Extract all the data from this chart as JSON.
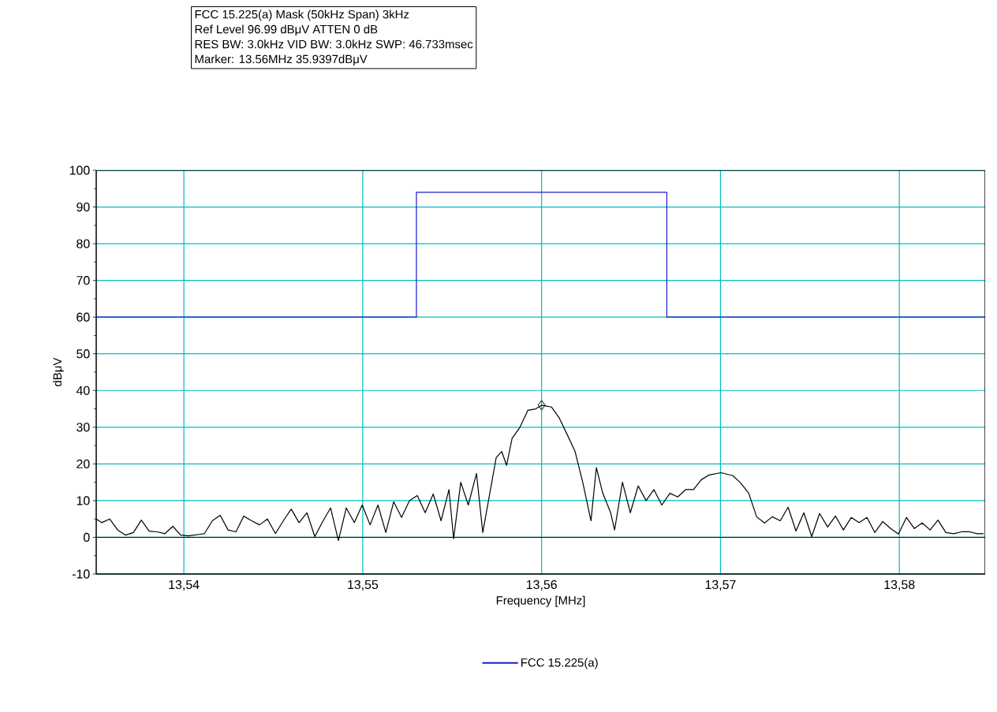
{
  "chart_data": {
    "type": "line",
    "title": "FCC 15.225(a) Mask (50kHz Span) 3kHz",
    "annotations": [
      "Ref Level 96.99 dBμV    ATTEN 0 dB",
      "RES BW: 3.0kHz  VID BW: 3.0kHz  SWP: 46.733msec",
      "Marker: 13.56MHz  35.9397dBμV"
    ],
    "xlabel": "Frequency [MHz]",
    "ylabel": "dBμV",
    "xlim": [
      13.5351,
      13.5848
    ],
    "ylim": [
      -10,
      100
    ],
    "xticks": [
      {
        "value": 13.54,
        "label": "13,54"
      },
      {
        "value": 13.55,
        "label": "13,55"
      },
      {
        "value": 13.56,
        "label": "13,56"
      },
      {
        "value": 13.57,
        "label": "13,57"
      },
      {
        "value": 13.58,
        "label": "13,58"
      }
    ],
    "yticks": [
      -10,
      0,
      10,
      20,
      30,
      40,
      50,
      60,
      70,
      80,
      90,
      100
    ],
    "grid": true,
    "legend": "bottom",
    "ref_lines": [
      {
        "axis": "y",
        "value": 0,
        "color": "#000000"
      }
    ],
    "series": [
      {
        "name": "FCC 15.225(a)",
        "color": "#1a1ad0",
        "x": [
          13.5351,
          13.553,
          13.553,
          13.567,
          13.567,
          13.5848
        ],
        "values": [
          60,
          60,
          94,
          94,
          60,
          60
        ]
      },
      {
        "color": "#000000",
        "x": [
          13.5351,
          13.53541,
          13.53585,
          13.5363,
          13.53674,
          13.53718,
          13.53762,
          13.53806,
          13.5385,
          13.53894,
          13.53938,
          13.53982,
          13.54026,
          13.54115,
          13.54159,
          13.54203,
          13.54247,
          13.54291,
          13.54335,
          13.54379,
          13.54423,
          13.54467,
          13.54512,
          13.54556,
          13.546,
          13.54644,
          13.54688,
          13.54732,
          13.54776,
          13.5482,
          13.54864,
          13.54908,
          13.54953,
          13.54997,
          13.55041,
          13.55085,
          13.55129,
          13.55173,
          13.55217,
          13.55261,
          13.55305,
          13.55349,
          13.55394,
          13.55438,
          13.55482,
          13.55508,
          13.55548,
          13.5559,
          13.55636,
          13.55671,
          13.55746,
          13.55777,
          13.55804,
          13.55835,
          13.55879,
          13.55923,
          13.55967,
          13.56,
          13.56055,
          13.56099,
          13.56143,
          13.56187,
          13.56231,
          13.56276,
          13.56306,
          13.56342,
          13.56386,
          13.56408,
          13.56452,
          13.56496,
          13.5654,
          13.56584,
          13.56628,
          13.56672,
          13.56717,
          13.56761,
          13.56805,
          13.56849,
          13.56893,
          13.56937,
          13.57003,
          13.57069,
          13.57113,
          13.57158,
          13.57202,
          13.57246,
          13.5729,
          13.57334,
          13.57378,
          13.57422,
          13.57466,
          13.5751,
          13.57554,
          13.57599,
          13.57643,
          13.57687,
          13.57731,
          13.57775,
          13.57819,
          13.57863,
          13.57907,
          13.57951,
          13.57995,
          13.5804,
          13.58084,
          13.58128,
          13.58172,
          13.58216,
          13.5826,
          13.58304,
          13.58348,
          13.58392,
          13.58436,
          13.58471
        ],
        "values": [
          5,
          4,
          5,
          2,
          0.6,
          1.3,
          4.7,
          1.7,
          1.5,
          1,
          3,
          0.6,
          0.4,
          1,
          4.5,
          6,
          2,
          1.5,
          5.8,
          4.5,
          3.4,
          5,
          1,
          4.5,
          7.7,
          4,
          6.7,
          0.2,
          4.3,
          8,
          -0.9,
          8,
          4,
          8.8,
          3.4,
          8.8,
          1.3,
          9.7,
          5.4,
          10,
          11.4,
          6.7,
          11.8,
          4.5,
          13,
          -0.4,
          15,
          8.8,
          17.4,
          1.3,
          21.7,
          23.4,
          19.6,
          27,
          30,
          34.6,
          35,
          36,
          35.5,
          32.5,
          28,
          23.4,
          14.8,
          4.5,
          19,
          12,
          6.7,
          2,
          15,
          6.7,
          14,
          10,
          13,
          8.8,
          12,
          11,
          13,
          13,
          15.7,
          17,
          17.6,
          16.8,
          14.8,
          12,
          5.6,
          3.9,
          5.6,
          4.5,
          8.2,
          1.7,
          6.7,
          0.2,
          6.5,
          2.8,
          5.8,
          2,
          5.4,
          4,
          5.4,
          1.3,
          4.3,
          2.4,
          0.9,
          5.4,
          2.4,
          3.9,
          2,
          4.7,
          1.3,
          1,
          1.5,
          1.5,
          1,
          1
        ]
      },
      {
        "color": "#000000",
        "type": "scatter",
        "marker": "diamond",
        "x": [
          13.56
        ],
        "values": [
          36
        ]
      }
    ]
  }
}
